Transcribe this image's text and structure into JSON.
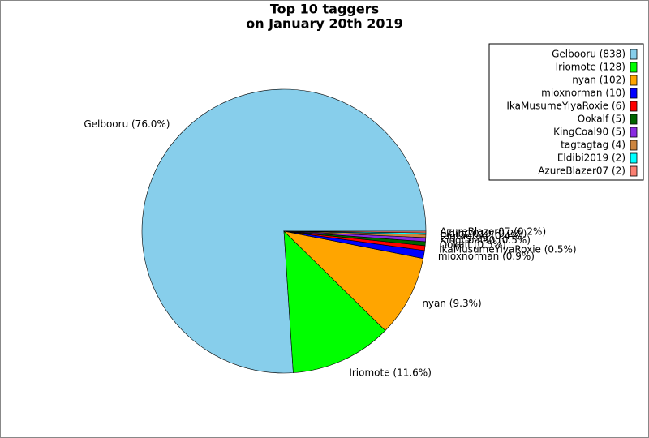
{
  "chart_data": {
    "type": "pie",
    "title": "Top 10 taggers",
    "subtitle": "on January 20th 2019",
    "categories": [
      "Gelbooru",
      "Iriomote",
      "nyan",
      "mioxnorman",
      "IkaMusumeYiyaRoxie",
      "Ookalf",
      "KingCoal90",
      "tagtagtag",
      "Eldibi2019",
      "AzureBlazer07"
    ],
    "values": [
      838,
      128,
      102,
      10,
      6,
      5,
      5,
      4,
      2,
      2
    ],
    "value_labels": [
      "Gelbooru (76.0%)",
      "Iriomote (11.6%)",
      "nyan (9.3%)",
      "mioxnorman (0.9%)",
      "IkaMusumeYiyaRoxie (0.5%)",
      "Ookalf (0.5%)",
      "KingCoal90 (0.5%)",
      "tagtagtag (0.4%)",
      "Eldibi2019 (0.2%)",
      "AzureBlazer07 (0.2%)"
    ],
    "legend_labels": [
      "Gelbooru (838)",
      "Iriomote (128)",
      "nyan (102)",
      "mioxnorman (10)",
      "IkaMusumeYiyaRoxie (6)",
      "Ookalf (5)",
      "KingCoal90 (5)",
      "tagtagtag (4)",
      "Eldibi2019 (2)",
      "AzureBlazer07 (2)"
    ],
    "colors": [
      "#87ceeb",
      "#00ff00",
      "#ffa500",
      "#0000ff",
      "#ff0000",
      "#006400",
      "#8a2be2",
      "#cd853f",
      "#00ffff",
      "#fa8072"
    ],
    "legend": "upper right"
  }
}
